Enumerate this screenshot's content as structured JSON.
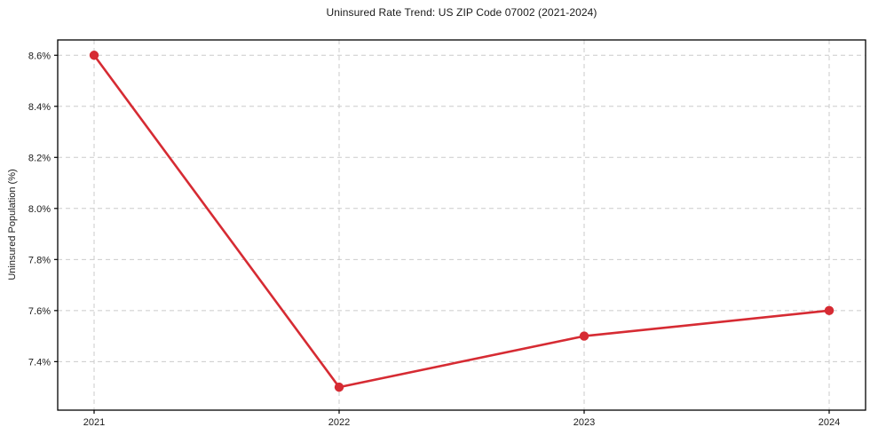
{
  "chart_data": {
    "type": "line",
    "title": "Uninsured Rate Trend: US ZIP Code 07002 (2021-2024)",
    "xlabel": "",
    "ylabel": "Uninsured Population (%)",
    "categories": [
      "2021",
      "2022",
      "2023",
      "2024"
    ],
    "values": [
      8.6,
      7.3,
      7.5,
      7.6
    ],
    "series_name": "uninsured-rate",
    "ylim": [
      7.21,
      8.66
    ],
    "yticks": [
      7.4,
      7.6,
      7.8,
      8.0,
      8.2,
      8.4,
      8.6
    ],
    "ytick_suffix": "%",
    "ytick_decimals": 1,
    "grid": true,
    "grid_style": "dashed",
    "legend": "none",
    "colors": {
      "line": "#d62b33",
      "marker": "#d62b33",
      "grid": "#cbcbcb",
      "axis_border": "#000000",
      "text": "#1a1a1a",
      "background": "#ffffff"
    },
    "marker": "circle"
  }
}
